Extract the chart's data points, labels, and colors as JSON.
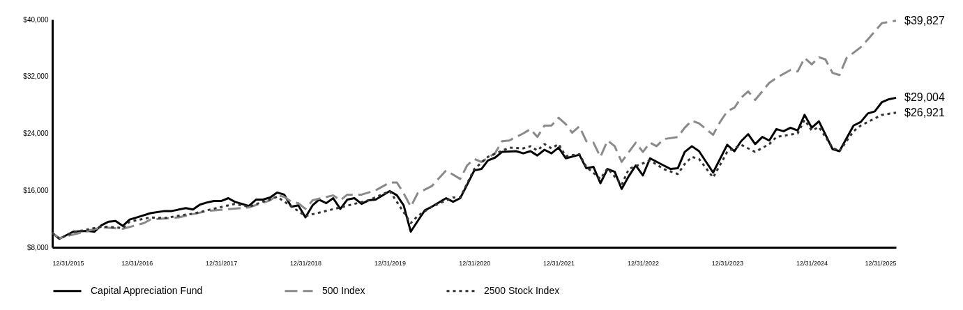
{
  "chart_data": {
    "type": "line",
    "legend": "bottom",
    "xlim": [
      "2015-12-31",
      "2025-12-31"
    ],
    "xticks": [
      {
        "value": "2015-12-31",
        "label": "12/31/2015"
      },
      {
        "value": "2016-12-31",
        "label": "12/31/2016"
      },
      {
        "value": "2017-12-31",
        "label": "12/31/2017"
      },
      {
        "value": "2018-12-31",
        "label": "12/31/2018"
      },
      {
        "value": "2019-12-31",
        "label": "12/31/2019"
      },
      {
        "value": "2020-12-31",
        "label": "12/31/2020"
      },
      {
        "value": "2021-12-31",
        "label": "12/31/2021"
      },
      {
        "value": "2022-12-31",
        "label": "12/31/2022"
      },
      {
        "value": "2023-12-31",
        "label": "12/31/2023"
      },
      {
        "value": "2024-12-31",
        "label": "12/31/2024"
      },
      {
        "value": "2025-12-31",
        "label": "12/31/2025"
      }
    ],
    "ylim": [
      8000,
      40000
    ],
    "yticks": [
      {
        "value": 8000,
        "label": "$8,000"
      },
      {
        "value": 16000,
        "label": "$16,000"
      },
      {
        "value": 24000,
        "label": "$24,000"
      },
      {
        "value": 32000,
        "label": "$32,000"
      },
      {
        "value": 40000,
        "label": "$40,000"
      }
    ],
    "series": [
      {
        "name": "Capital Appreciation Fund",
        "color": "#000000",
        "line_style": "solid",
        "x": [
          "2015-12-31",
          "2016-01-31",
          "2016-03-31",
          "2016-05-31",
          "2016-06-30",
          "2016-07-31",
          "2016-08-31",
          "2016-09-30",
          "2016-10-31",
          "2016-11-30",
          "2016-12-31",
          "2017-02-28",
          "2017-04-30",
          "2017-05-31",
          "2017-07-31",
          "2017-08-31",
          "2017-09-30",
          "2017-10-31",
          "2017-11-30",
          "2017-12-31",
          "2018-01-31",
          "2018-02-28",
          "2018-04-30",
          "2018-05-31",
          "2018-06-30",
          "2018-07-31",
          "2018-08-31",
          "2018-09-30",
          "2018-10-31",
          "2018-11-30",
          "2018-12-31",
          "2019-01-31",
          "2019-02-28",
          "2019-03-31",
          "2019-04-30",
          "2019-05-31",
          "2019-06-30",
          "2019-07-31",
          "2019-08-31",
          "2019-09-30",
          "2019-10-31",
          "2019-12-31",
          "2020-01-31",
          "2020-02-29",
          "2020-03-31",
          "2020-04-30",
          "2020-05-31",
          "2020-06-30",
          "2020-08-31",
          "2020-09-30",
          "2020-10-31",
          "2020-11-30",
          "2020-12-31",
          "2021-01-31",
          "2021-02-28",
          "2021-03-31",
          "2021-04-30",
          "2021-06-30",
          "2021-07-31",
          "2021-08-31",
          "2021-09-30",
          "2021-10-31",
          "2021-11-30",
          "2021-12-31",
          "2022-01-31",
          "2022-03-31",
          "2022-04-30",
          "2022-05-31",
          "2022-06-30",
          "2022-07-31",
          "2022-08-31",
          "2022-09-30",
          "2022-10-31",
          "2022-11-30",
          "2022-12-31",
          "2023-01-31",
          "2023-03-31",
          "2023-04-30",
          "2023-05-31",
          "2023-06-30",
          "2023-07-31",
          "2023-08-31",
          "2023-10-31",
          "2023-12-31",
          "2024-01-31",
          "2024-02-29",
          "2024-03-31",
          "2024-04-30",
          "2024-05-31",
          "2024-06-30",
          "2024-07-31",
          "2024-08-31",
          "2024-09-30",
          "2024-10-31",
          "2024-11-30",
          "2024-12-31",
          "2025-01-31",
          "2025-03-31",
          "2025-04-30",
          "2025-06-30",
          "2025-07-31",
          "2025-08-31",
          "2025-09-30",
          "2025-10-31",
          "2025-11-30",
          "2025-12-31"
        ],
        "values": [
          10000,
          9200,
          10200,
          10300,
          10200,
          11100,
          11600,
          11700,
          11000,
          11900,
          12200,
          12800,
          13100,
          13100,
          13500,
          13300,
          14000,
          14300,
          14500,
          14500,
          14900,
          14400,
          13800,
          14700,
          14700,
          15000,
          15700,
          15400,
          13700,
          13900,
          12200,
          13900,
          14700,
          14200,
          14900,
          13400,
          14700,
          14900,
          14100,
          14600,
          14700,
          15900,
          15300,
          13900,
          10200,
          11700,
          13200,
          13700,
          14900,
          14400,
          14900,
          16800,
          18800,
          19000,
          20200,
          20600,
          21400,
          21500,
          21200,
          21500,
          20900,
          21700,
          21200,
          22000,
          20500,
          21000,
          19100,
          19300,
          17000,
          19000,
          18600,
          16200,
          18000,
          19500,
          18100,
          20500,
          19500,
          19000,
          19100,
          21400,
          22200,
          21500,
          18500,
          22400,
          21500,
          22900,
          23900,
          22500,
          23500,
          23000,
          24600,
          24300,
          24800,
          24400,
          26600,
          24800,
          25700,
          21800,
          21500,
          25100,
          25600,
          26800,
          27100,
          28400,
          28800,
          29004
        ],
        "value_labels": [
          null,
          null,
          null,
          null,
          null,
          null,
          null,
          null,
          null,
          null,
          null,
          null,
          null,
          null,
          null,
          null,
          null,
          null,
          null,
          null,
          null,
          null,
          null,
          null,
          null,
          null,
          null,
          null,
          null,
          null,
          null,
          null,
          null,
          null,
          null,
          null,
          null,
          null,
          null,
          null,
          null,
          null,
          null,
          null,
          null,
          null,
          null,
          null,
          null,
          null,
          null,
          null,
          null,
          null,
          null,
          null,
          null,
          null,
          null,
          null,
          null,
          null,
          null,
          null,
          null,
          null,
          null,
          null,
          null,
          null,
          null,
          null,
          null,
          null,
          null,
          null,
          null,
          null,
          null,
          null,
          null,
          null,
          null,
          null,
          null,
          null,
          null,
          null,
          null,
          null,
          null,
          null,
          null,
          null,
          null,
          null,
          null,
          null,
          null,
          null,
          null,
          null,
          null,
          null,
          null,
          "$29,004"
        ]
      },
      {
        "name": "500 Index",
        "color": "#8a8a8a",
        "line_style": "dashed",
        "x": [
          "2015-12-31",
          "2016-01-31",
          "2016-07-31",
          "2016-10-31",
          "2017-01-31",
          "2017-02-28",
          "2017-06-30",
          "2017-10-31",
          "2018-04-30",
          "2018-07-31",
          "2018-08-31",
          "2018-09-30",
          "2018-10-31",
          "2018-11-30",
          "2018-12-31",
          "2019-01-31",
          "2019-04-30",
          "2019-05-31",
          "2019-06-30",
          "2019-08-31",
          "2019-09-30",
          "2019-10-31",
          "2019-12-31",
          "2020-01-31",
          "2020-02-29",
          "2020-03-31",
          "2020-04-30",
          "2020-06-30",
          "2020-08-31",
          "2020-10-31",
          "2020-11-30",
          "2020-12-31",
          "2021-01-31",
          "2021-03-31",
          "2021-04-30",
          "2021-05-31",
          "2021-07-31",
          "2021-08-31",
          "2021-09-30",
          "2021-10-31",
          "2021-11-30",
          "2021-12-31",
          "2022-01-31",
          "2022-02-28",
          "2022-03-31",
          "2022-04-30",
          "2022-05-31",
          "2022-06-30",
          "2022-07-31",
          "2022-08-31",
          "2022-09-30",
          "2022-11-30",
          "2022-12-31",
          "2023-01-31",
          "2023-02-28",
          "2023-03-31",
          "2023-05-31",
          "2023-06-30",
          "2023-07-31",
          "2023-08-31",
          "2023-10-31",
          "2023-11-30",
          "2023-12-31",
          "2024-01-31",
          "2024-02-29",
          "2024-03-31",
          "2024-04-30",
          "2024-06-30",
          "2024-07-31",
          "2024-09-30",
          "2024-10-31",
          "2024-11-30",
          "2024-12-31",
          "2025-01-31",
          "2025-02-28",
          "2025-03-31",
          "2025-04-30",
          "2025-05-31",
          "2025-07-31",
          "2025-08-31",
          "2025-10-31",
          "2025-12-31"
        ],
        "values": [
          10000,
          9300,
          10800,
          10600,
          11400,
          11900,
          12200,
          13100,
          13600,
          14600,
          15300,
          15100,
          14400,
          14200,
          13400,
          14600,
          15300,
          14600,
          15400,
          15400,
          15700,
          16000,
          17100,
          17100,
          15600,
          13700,
          15600,
          16600,
          18800,
          17600,
          19500,
          20400,
          20000,
          21200,
          22900,
          23000,
          24000,
          24600,
          23500,
          25100,
          25100,
          26200,
          25300,
          24100,
          25000,
          22900,
          22700,
          20700,
          23000,
          22200,
          20000,
          22700,
          21400,
          22700,
          22200,
          23200,
          23500,
          24800,
          25800,
          25400,
          23800,
          25600,
          27100,
          27600,
          29000,
          29900,
          28700,
          31100,
          31800,
          32900,
          32700,
          34600,
          33700,
          34700,
          34400,
          32500,
          32200,
          34600,
          36100,
          37200,
          39500,
          39827
        ],
        "value_labels": [
          null,
          null,
          null,
          null,
          null,
          null,
          null,
          null,
          null,
          null,
          null,
          null,
          null,
          null,
          null,
          null,
          null,
          null,
          null,
          null,
          null,
          null,
          null,
          null,
          null,
          null,
          null,
          null,
          null,
          null,
          null,
          null,
          null,
          null,
          null,
          null,
          null,
          null,
          null,
          null,
          null,
          null,
          null,
          null,
          null,
          null,
          null,
          null,
          null,
          null,
          null,
          null,
          null,
          null,
          null,
          null,
          null,
          null,
          null,
          null,
          null,
          null,
          null,
          null,
          null,
          null,
          null,
          null,
          null,
          null,
          null,
          null,
          null,
          null,
          null,
          null,
          null,
          null,
          null,
          null,
          null,
          "$39,827"
        ]
      },
      {
        "name": "2500 Stock Index",
        "color": "#333333",
        "line_style": "dotted",
        "x": [
          "2015-12-31",
          "2016-01-31",
          "2016-03-31",
          "2016-07-31",
          "2016-09-30",
          "2016-10-31",
          "2016-11-30",
          "2017-02-28",
          "2017-04-30",
          "2017-07-31",
          "2017-08-31",
          "2017-10-31",
          "2018-02-28",
          "2018-04-30",
          "2018-08-31",
          "2018-12-31",
          "2019-05-31",
          "2019-09-30",
          "2019-12-31",
          "2020-03-31",
          "2020-04-30",
          "2020-06-30",
          "2020-09-30",
          "2020-10-31",
          "2020-12-31",
          "2021-02-28",
          "2021-05-31",
          "2021-07-31",
          "2021-08-31",
          "2021-09-30",
          "2021-10-31",
          "2021-11-30",
          "2021-12-31",
          "2022-01-31",
          "2022-03-31",
          "2022-04-30",
          "2022-06-30",
          "2022-07-31",
          "2022-09-30",
          "2022-10-31",
          "2023-01-31",
          "2023-03-31",
          "2023-05-31",
          "2023-06-30",
          "2023-07-31",
          "2023-08-31",
          "2023-10-31",
          "2023-12-31",
          "2024-02-29",
          "2024-04-30",
          "2024-06-30",
          "2024-07-31",
          "2024-10-31",
          "2024-11-30",
          "2024-12-31",
          "2025-01-31",
          "2025-03-31",
          "2025-04-30",
          "2025-06-30",
          "2025-07-31",
          "2025-09-30",
          "2025-10-31",
          "2025-12-31"
        ],
        "values": [
          10000,
          9200,
          10100,
          10900,
          10800,
          10700,
          11600,
          12200,
          12100,
          12600,
          12700,
          13200,
          14100,
          13700,
          15100,
          12400,
          13600,
          14600,
          15900,
          11400,
          12400,
          13700,
          15000,
          15000,
          19000,
          20700,
          22000,
          21900,
          22200,
          21600,
          22500,
          21900,
          22500,
          20800,
          21100,
          19300,
          17600,
          19100,
          16800,
          19000,
          20200,
          19000,
          18300,
          19700,
          20700,
          20400,
          17800,
          21400,
          22400,
          21400,
          22500,
          23500,
          24000,
          25900,
          24400,
          24900,
          22000,
          21500,
          24300,
          25100,
          26100,
          26600,
          26921
        ],
        "value_labels": [
          null,
          null,
          null,
          null,
          null,
          null,
          null,
          null,
          null,
          null,
          null,
          null,
          null,
          null,
          null,
          null,
          null,
          null,
          null,
          null,
          null,
          null,
          null,
          null,
          null,
          null,
          null,
          null,
          null,
          null,
          null,
          null,
          null,
          null,
          null,
          null,
          null,
          null,
          null,
          null,
          null,
          null,
          null,
          null,
          null,
          null,
          null,
          null,
          null,
          null,
          null,
          null,
          null,
          null,
          null,
          null,
          null,
          null,
          null,
          null,
          null,
          null,
          "$26,921"
        ]
      }
    ]
  }
}
